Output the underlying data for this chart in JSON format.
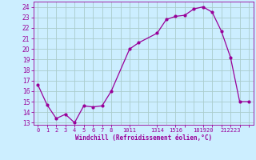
{
  "x": [
    0,
    1,
    2,
    3,
    4,
    5,
    6,
    7,
    8,
    10,
    11,
    13,
    14,
    15,
    16,
    17,
    18,
    19,
    20,
    21,
    22,
    23
  ],
  "y": [
    16.6,
    14.7,
    13.4,
    13.8,
    13.0,
    14.6,
    14.5,
    14.6,
    16.0,
    20.0,
    20.6,
    21.5,
    22.8,
    23.1,
    23.2,
    23.8,
    24.0,
    23.5,
    21.7,
    19.2,
    15.0,
    15.0
  ],
  "line_color": "#990099",
  "marker_color": "#990099",
  "bg_color": "#cceeff",
  "grid_color": "#aacccc",
  "xlabel": "Windchill (Refroidissement éolien,°C)",
  "tick_color": "#990099",
  "ylim": [
    12.8,
    24.5
  ],
  "xlim": [
    -0.5,
    23.5
  ],
  "yticks": [
    13,
    14,
    15,
    16,
    17,
    18,
    19,
    20,
    21,
    22,
    23,
    24
  ],
  "xtick_positions": [
    0,
    1,
    2,
    3,
    4,
    5,
    6,
    7,
    8,
    9.5,
    11,
    12.5,
    14,
    15,
    16,
    17.5,
    19,
    20,
    21,
    22,
    23
  ],
  "xtick_labels": [
    "0",
    "1",
    "2",
    "3",
    "4",
    "5",
    "6",
    "7",
    "8",
    "1011",
    "",
    "1314",
    "1516",
    "",
    "",
    "1819",
    "2021",
    "",
    "2223",
    "",
    ""
  ]
}
